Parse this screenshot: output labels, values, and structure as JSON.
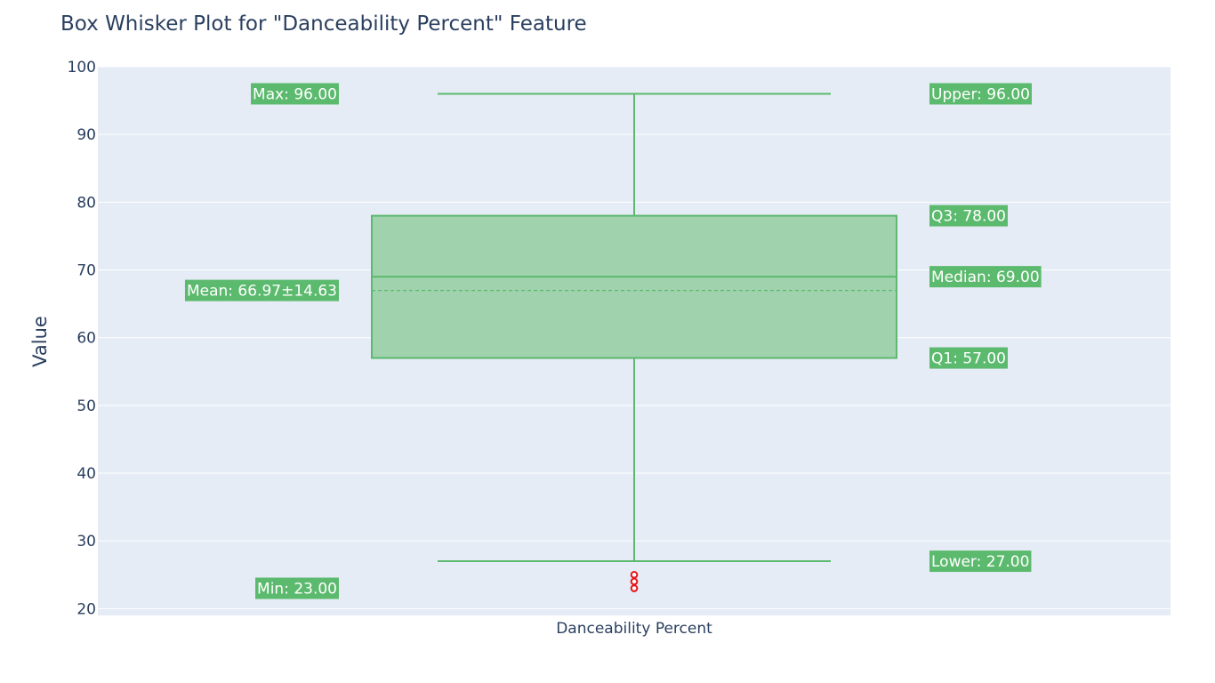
{
  "chart_data": {
    "type": "box",
    "title": "Box Whisker Plot for \"Danceability Percent\" Feature",
    "xlabel": "",
    "ylabel": "Value",
    "categories": [
      "Danceability Percent"
    ],
    "ylim": [
      19,
      100
    ],
    "y_ticks": [
      20,
      30,
      40,
      50,
      60,
      70,
      80,
      90,
      100
    ],
    "grid": true,
    "box": {
      "category": "Danceability Percent",
      "min": 23,
      "lower_fence": 27,
      "q1": 57,
      "median": 69,
      "q3": 78,
      "upper_fence": 96,
      "max": 96,
      "mean": 66.97,
      "std": 14.63
    },
    "outliers": [
      25,
      24,
      23
    ],
    "annotations": {
      "max": "Max: 96.00",
      "min": "Min: 23.00",
      "mean": "Mean: 66.97±14.63",
      "upper": "Upper: 96.00",
      "q3": "Q3: 78.00",
      "median": "Median: 69.00",
      "q1": "Q1: 57.00",
      "lower": "Lower: 27.00"
    },
    "colors": {
      "box_line": "#5cb96f",
      "box_fill": "#9fd2ad",
      "outlier": "#e8141a",
      "plot_bg": "#e5ecf6",
      "label_bg": "#5cba6e"
    }
  }
}
